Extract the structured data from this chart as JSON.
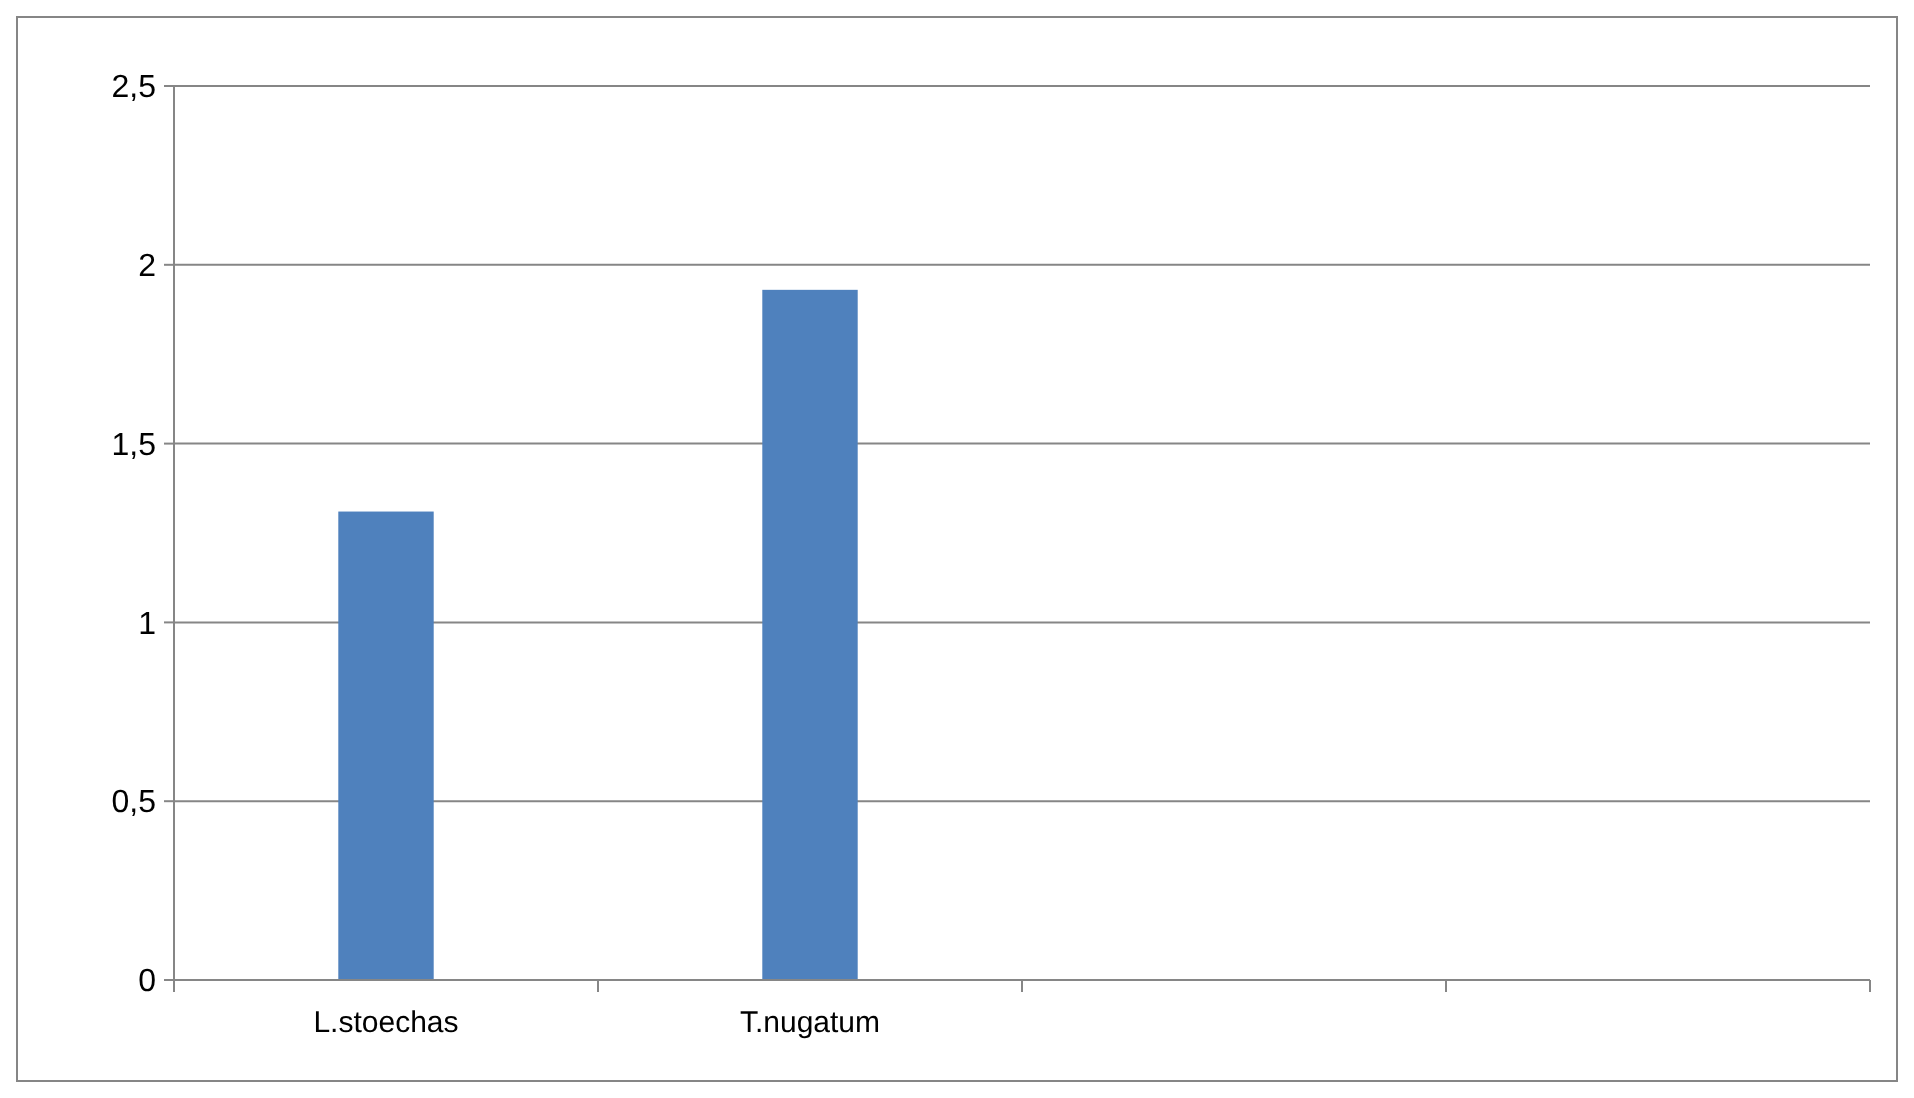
{
  "chart_data": {
    "type": "bar",
    "categories": [
      "L.stoechas",
      "T.nugatum",
      null,
      null
    ],
    "values": [
      1.31,
      1.93,
      null,
      null
    ],
    "color": "#4f81bd",
    "ylim": [
      0,
      2.5
    ],
    "yticks": [
      {
        "value": 0,
        "label": "0"
      },
      {
        "value": 0.5,
        "label": "0,5"
      },
      {
        "value": 1,
        "label": "1"
      },
      {
        "value": 1.5,
        "label": "1,5"
      },
      {
        "value": 2,
        "label": "2"
      },
      {
        "value": 2.5,
        "label": "2,5"
      }
    ],
    "grid": "y"
  }
}
